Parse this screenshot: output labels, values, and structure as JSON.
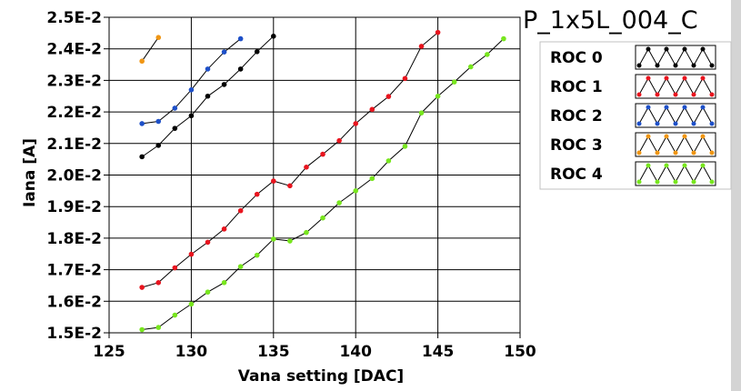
{
  "chart_data": {
    "type": "line",
    "title": "P_1x5L_004_C",
    "xlabel": "Vana setting [DAC]",
    "ylabel": "Iana [A]",
    "xlim": [
      125,
      150
    ],
    "ylim": [
      0.015,
      0.025
    ],
    "x_ticks": [
      125,
      130,
      135,
      140,
      145,
      150
    ],
    "y_ticks": [
      0.015,
      0.016,
      0.017,
      0.018,
      0.019,
      0.02,
      0.021,
      0.022,
      0.023,
      0.024,
      0.025
    ],
    "y_tick_labels": [
      "1.5E-2",
      "1.6E-2",
      "1.7E-2",
      "1.8E-2",
      "1.9E-2",
      "2.0E-2",
      "2.1E-2",
      "2.2E-2",
      "2.3E-2",
      "2.4E-2",
      "2.5E-2"
    ],
    "grid": true,
    "legend_position": "right",
    "series": [
      {
        "name": "ROC 0",
        "color": "#000000",
        "x": [
          127,
          128,
          129,
          130,
          131,
          132,
          133,
          134,
          135
        ],
        "y": [
          0.02058,
          0.02094,
          0.02148,
          0.02188,
          0.0225,
          0.02287,
          0.02336,
          0.02391,
          0.0244
        ]
      },
      {
        "name": "ROC 1",
        "color": "#e8141e",
        "x": [
          127,
          128,
          129,
          130,
          131,
          132,
          133,
          134,
          135,
          136,
          137,
          138,
          139,
          140,
          141,
          142,
          143,
          144,
          145
        ],
        "y": [
          0.01644,
          0.01659,
          0.01706,
          0.01749,
          0.01787,
          0.01829,
          0.01887,
          0.01939,
          0.01981,
          0.01966,
          0.02025,
          0.02066,
          0.02109,
          0.02163,
          0.02208,
          0.02249,
          0.02306,
          0.02408,
          0.02452
        ]
      },
      {
        "name": "ROC 2",
        "color": "#1e50c8",
        "x": [
          127,
          128,
          129,
          130,
          131,
          132,
          133
        ],
        "y": [
          0.02163,
          0.0217,
          0.02212,
          0.0227,
          0.02336,
          0.0239,
          0.02432
        ]
      },
      {
        "name": "ROC 3",
        "color": "#f09614",
        "x": [
          127,
          128
        ],
        "y": [
          0.02361,
          0.02436
        ]
      },
      {
        "name": "ROC 4",
        "color": "#78e61e",
        "x": [
          127,
          128,
          129,
          130,
          131,
          132,
          133,
          134,
          135,
          136,
          137,
          138,
          139,
          140,
          141,
          142,
          143,
          144,
          145,
          146,
          147,
          148,
          149
        ],
        "y": [
          0.0151,
          0.01517,
          0.01556,
          0.01591,
          0.01629,
          0.01659,
          0.0171,
          0.01746,
          0.01797,
          0.01791,
          0.01818,
          0.01864,
          0.01912,
          0.0195,
          0.01989,
          0.02045,
          0.02091,
          0.02197,
          0.0225,
          0.02295,
          0.02343,
          0.02382,
          0.02432
        ]
      }
    ]
  }
}
